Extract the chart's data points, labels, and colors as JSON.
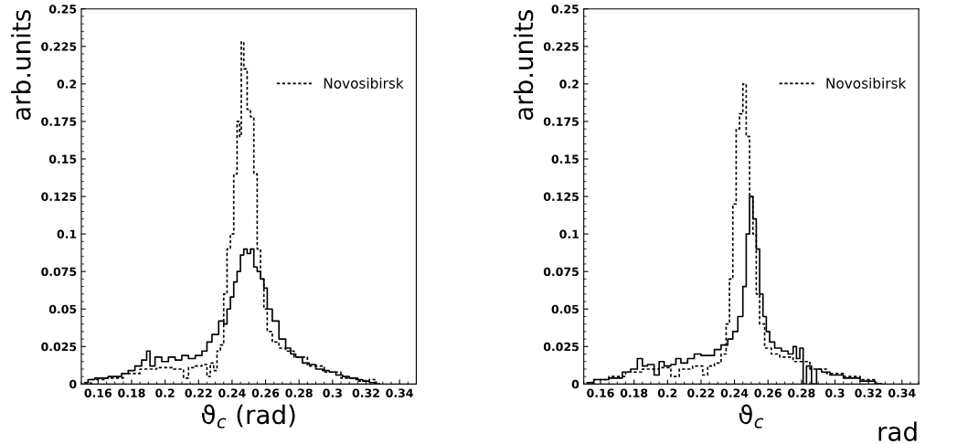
{
  "chart_data": [
    {
      "type": "step",
      "xlabel": "ϑ$_{c}$ (rad)",
      "ylabel": "arb.units",
      "xlim": [
        0.15,
        0.35
      ],
      "ylim": [
        0,
        0.25
      ],
      "xticks": [
        0.16,
        0.18,
        0.2,
        0.22,
        0.24,
        0.26,
        0.28,
        0.3,
        0.32,
        0.34
      ],
      "yticks": [
        0,
        0.025,
        0.05,
        0.075,
        0.1,
        0.125,
        0.15,
        0.175,
        0.2,
        0.225,
        0.25
      ],
      "legend": "top right",
      "grid": false,
      "series": [
        {
          "color": "#000000",
          "line_style": "solid",
          "x": [
            0.152,
            0.156,
            0.16,
            0.164,
            0.168,
            0.172,
            0.176,
            0.18,
            0.184,
            0.188,
            0.19,
            0.192,
            0.196,
            0.2,
            0.204,
            0.208,
            0.212,
            0.216,
            0.22,
            0.224,
            0.226,
            0.23,
            0.234,
            0.236,
            0.238,
            0.24,
            0.242,
            0.244,
            0.246,
            0.248,
            0.25,
            0.252,
            0.254,
            0.256,
            0.258,
            0.26,
            0.262,
            0.266,
            0.27,
            0.274,
            0.276,
            0.28,
            0.284,
            0.288,
            0.292,
            0.296,
            0.3,
            0.304,
            0.308,
            0.312,
            0.316,
            0.32,
            0.324,
            0.328
          ],
          "values": [
            0.001,
            0.003,
            0.004,
            0.004,
            0.005,
            0.005,
            0.007,
            0.009,
            0.012,
            0.016,
            0.022,
            0.012,
            0.018,
            0.015,
            0.018,
            0.016,
            0.019,
            0.017,
            0.019,
            0.022,
            0.028,
            0.033,
            0.042,
            0.04,
            0.05,
            0.058,
            0.068,
            0.075,
            0.086,
            0.09,
            0.087,
            0.09,
            0.078,
            0.075,
            0.07,
            0.064,
            0.05,
            0.042,
            0.03,
            0.024,
            0.02,
            0.018,
            0.014,
            0.013,
            0.01,
            0.009,
            0.008,
            0.006,
            0.005,
            0.004,
            0.003,
            0.002,
            0.001,
            0.0
          ]
        },
        {
          "name": "Novosibirsk",
          "color": "#000000",
          "line_style": "dashed",
          "x": [
            0.152,
            0.16,
            0.17,
            0.18,
            0.19,
            0.2,
            0.21,
            0.212,
            0.216,
            0.22,
            0.224,
            0.226,
            0.228,
            0.23,
            0.232,
            0.234,
            0.236,
            0.238,
            0.24,
            0.242,
            0.244,
            0.245,
            0.246,
            0.248,
            0.25,
            0.252,
            0.254,
            0.256,
            0.258,
            0.26,
            0.262,
            0.266,
            0.27,
            0.274,
            0.28,
            0.29,
            0.3,
            0.31,
            0.32,
            0.324,
            0.328
          ],
          "values": [
            0.0,
            0.003,
            0.004,
            0.007,
            0.01,
            0.011,
            0.01,
            0.004,
            0.011,
            0.012,
            0.013,
            0.005,
            0.014,
            0.009,
            0.022,
            0.026,
            0.06,
            0.09,
            0.1,
            0.14,
            0.175,
            0.165,
            0.228,
            0.21,
            0.183,
            0.178,
            0.14,
            0.09,
            0.07,
            0.05,
            0.035,
            0.028,
            0.024,
            0.022,
            0.018,
            0.012,
            0.008,
            0.004,
            0.002,
            0.003,
            0.0
          ]
        }
      ]
    },
    {
      "type": "step",
      "xlabel": "ϑ$_{c}$",
      "annotations": [
        "rad"
      ],
      "ylabel": "arb.units",
      "xlim": [
        0.15,
        0.35
      ],
      "ylim": [
        0,
        0.25
      ],
      "xticks": [
        0.16,
        0.18,
        0.2,
        0.22,
        0.24,
        0.26,
        0.28,
        0.3,
        0.32,
        0.34
      ],
      "yticks": [
        0,
        0.025,
        0.05,
        0.075,
        0.1,
        0.125,
        0.15,
        0.175,
        0.2,
        0.225,
        0.25
      ],
      "legend": "top right",
      "grid": false,
      "series": [
        {
          "color": "#000000",
          "line_style": "solid",
          "x": [
            0.152,
            0.16,
            0.17,
            0.176,
            0.18,
            0.184,
            0.186,
            0.19,
            0.194,
            0.196,
            0.2,
            0.204,
            0.206,
            0.21,
            0.214,
            0.218,
            0.222,
            0.226,
            0.23,
            0.234,
            0.238,
            0.24,
            0.244,
            0.246,
            0.248,
            0.25,
            0.252,
            0.254,
            0.256,
            0.258,
            0.26,
            0.262,
            0.266,
            0.27,
            0.274,
            0.276,
            0.278,
            0.28,
            0.282,
            0.284,
            0.288,
            0.29,
            0.294,
            0.3,
            0.31,
            0.32,
            0.328
          ],
          "values": [
            0.001,
            0.003,
            0.004,
            0.008,
            0.01,
            0.017,
            0.012,
            0.013,
            0.006,
            0.015,
            0.012,
            0.013,
            0.017,
            0.014,
            0.017,
            0.02,
            0.019,
            0.019,
            0.023,
            0.026,
            0.03,
            0.035,
            0.045,
            0.065,
            0.1,
            0.125,
            0.11,
            0.09,
            0.06,
            0.045,
            0.035,
            0.028,
            0.024,
            0.022,
            0.02,
            0.025,
            0.017,
            0.024,
            0.0,
            0.012,
            0.0,
            0.01,
            0.008,
            0.006,
            0.004,
            0.002,
            0.0
          ]
        },
        {
          "name": "Novosibirsk",
          "color": "#000000",
          "line_style": "dashed",
          "x": [
            0.152,
            0.16,
            0.17,
            0.18,
            0.19,
            0.2,
            0.204,
            0.21,
            0.22,
            0.222,
            0.226,
            0.23,
            0.234,
            0.236,
            0.238,
            0.24,
            0.242,
            0.244,
            0.246,
            0.248,
            0.25,
            0.252,
            0.254,
            0.256,
            0.26,
            0.264,
            0.27,
            0.28,
            0.29,
            0.3,
            0.31,
            0.32,
            0.328
          ],
          "values": [
            0.0,
            0.003,
            0.005,
            0.008,
            0.01,
            0.011,
            0.005,
            0.01,
            0.012,
            0.006,
            0.012,
            0.014,
            0.02,
            0.04,
            0.07,
            0.12,
            0.17,
            0.18,
            0.2,
            0.165,
            0.125,
            0.1,
            0.06,
            0.04,
            0.024,
            0.02,
            0.018,
            0.015,
            0.01,
            0.007,
            0.005,
            0.003,
            0.0
          ]
        }
      ]
    }
  ]
}
